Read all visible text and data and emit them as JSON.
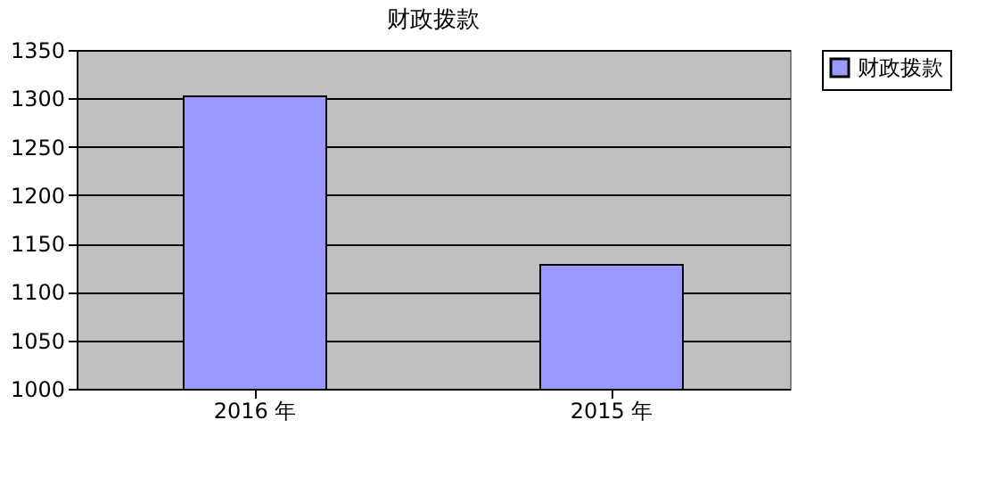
{
  "chart_data": {
    "type": "bar",
    "title": "财政拨款",
    "categories": [
      "2016 年",
      "2015 年"
    ],
    "series": [
      {
        "name": "财政拨款",
        "color": "#9999ff",
        "values": [
          1302,
          1128
        ]
      }
    ],
    "ylim": [
      1000,
      1350
    ],
    "yticks": [
      1000,
      1050,
      1100,
      1150,
      1200,
      1250,
      1300,
      1350
    ],
    "grid": "y",
    "legend": "right"
  }
}
